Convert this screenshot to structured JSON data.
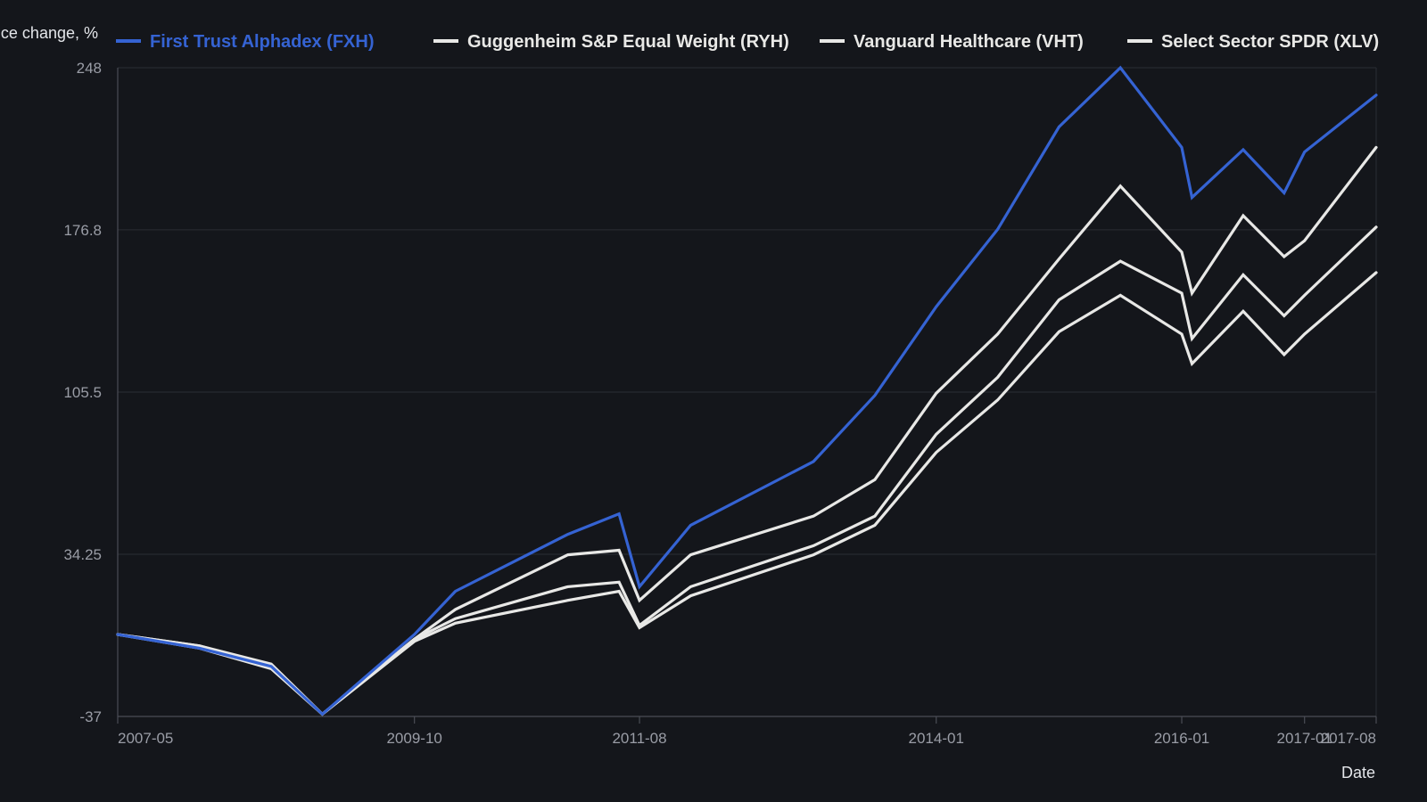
{
  "chart_data": {
    "type": "line",
    "ylabel": "Price change, %",
    "xlabel": "Date",
    "ylim": [
      -37,
      248
    ],
    "y_ticks": [
      "248",
      "176.8",
      "105.5",
      "34.25",
      "-37"
    ],
    "x_ticks": [
      "2007-05",
      "2009-10",
      "2011-08",
      "2014-01",
      "2016-01",
      "2017-01",
      "2017-08"
    ],
    "grid": true,
    "legend_position": "top",
    "x": [
      "2007-05",
      "2008-01",
      "2008-08",
      "2009-01",
      "2009-10",
      "2010-02",
      "2011-01",
      "2011-06",
      "2011-08",
      "2012-01",
      "2013-01",
      "2013-07",
      "2014-01",
      "2014-07",
      "2015-01",
      "2015-07",
      "2016-01",
      "2016-02",
      "2016-07",
      "2016-11",
      "2017-01",
      "2017-08"
    ],
    "series": [
      {
        "name": "First Trust Alphadex (FXH)",
        "color": "#3563d3",
        "values": [
          -1,
          -7,
          -15,
          -36,
          -1,
          18,
          43,
          52,
          20,
          47,
          75,
          104,
          143,
          177,
          222,
          248,
          213,
          191,
          212,
          193,
          211,
          236
        ]
      },
      {
        "name": "Guggenheim S&P Equal Weight (RYH)",
        "color": "#e8e8e6",
        "values": [
          -1,
          -6,
          -15,
          -36,
          -3,
          10,
          34,
          36,
          14,
          34,
          51,
          67,
          105,
          131,
          164,
          196,
          167,
          149,
          183,
          165,
          172,
          213
        ]
      },
      {
        "name": "Vanguard Healthcare (VHT)",
        "color": "#e8e8e6",
        "values": [
          -1,
          -6,
          -14,
          -36,
          -3,
          6,
          20,
          22,
          3,
          20,
          38,
          51,
          87,
          112,
          146,
          163,
          149,
          129,
          157,
          139,
          148,
          178
        ]
      },
      {
        "name": "Select Sector SPDR (XLV)",
        "color": "#e8e8e6",
        "values": [
          -1,
          -7,
          -16,
          -36,
          -4,
          4,
          14,
          18,
          2,
          16,
          34,
          47,
          79,
          102,
          132,
          148,
          131,
          118,
          141,
          122,
          131,
          158
        ]
      }
    ]
  }
}
